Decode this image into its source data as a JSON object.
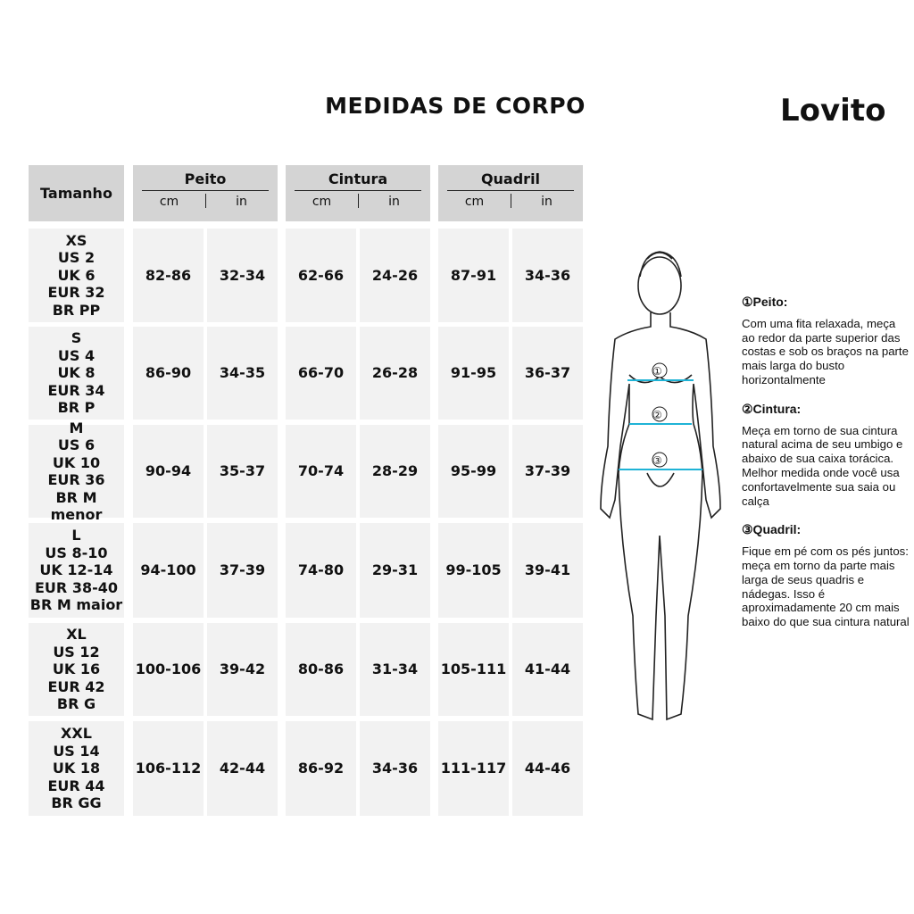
{
  "title": "MEDIDAS DE CORPO",
  "brand": "Lovito",
  "table": {
    "size_header": "Tamanho",
    "groups": [
      {
        "label": "Peito",
        "units": [
          "cm",
          "in"
        ]
      },
      {
        "label": "Cintura",
        "units": [
          "cm",
          "in"
        ]
      },
      {
        "label": "Quadril",
        "units": [
          "cm",
          "in"
        ]
      }
    ],
    "rows": [
      {
        "size": "XS\nUS 2\nUK 6\nEUR 32\nBR PP",
        "values": [
          "82-86",
          "32-34",
          "62-66",
          "24-26",
          "87-91",
          "34-36"
        ]
      },
      {
        "size": "S\nUS 4\nUK 8\nEUR 34\nBR P",
        "values": [
          "86-90",
          "34-35",
          "66-70",
          "26-28",
          "91-95",
          "36-37"
        ]
      },
      {
        "size": "M\nUS 6\nUK 10\nEUR 36\nBR M menor",
        "values": [
          "90-94",
          "35-37",
          "70-74",
          "28-29",
          "95-99",
          "37-39"
        ]
      },
      {
        "size": "L\nUS 8-10\nUK 12-14\nEUR 38-40\nBR M maior",
        "values": [
          "94-100",
          "37-39",
          "74-80",
          "29-31",
          "99-105",
          "39-41"
        ]
      },
      {
        "size": "XL\nUS 12\nUK 16\nEUR 42\nBR G",
        "values": [
          "100-106",
          "39-42",
          "80-86",
          "31-34",
          "105-111",
          "41-44"
        ]
      },
      {
        "size": "XXL\nUS 14\nUK 18\nEUR 44\nBR GG",
        "values": [
          "106-112",
          "42-44",
          "86-92",
          "34-36",
          "111-117",
          "44-46"
        ]
      }
    ]
  },
  "figure": {
    "markers": [
      "①",
      "②",
      "③"
    ],
    "line_color": "#1fb3d6"
  },
  "notes": [
    {
      "heading": "①Peito:",
      "text": "Com uma fita relaxada, meça ao redor da parte superior das costas e sob os braços na parte mais larga do busto horizontalmente"
    },
    {
      "heading": "②Cintura:",
      "text": "Meça em torno de sua cintura natural acima de seu umbigo e abaixo de sua caixa torácica. Melhor medida onde você usa confortavelmente sua saia ou calça"
    },
    {
      "heading": "③Quadril:",
      "text": "Fique em pé com os pés juntos: meça em torno da parte mais larga de seus quadris e nádegas. Isso é aproximadamente 20 cm mais baixo do que sua cintura natural"
    }
  ]
}
